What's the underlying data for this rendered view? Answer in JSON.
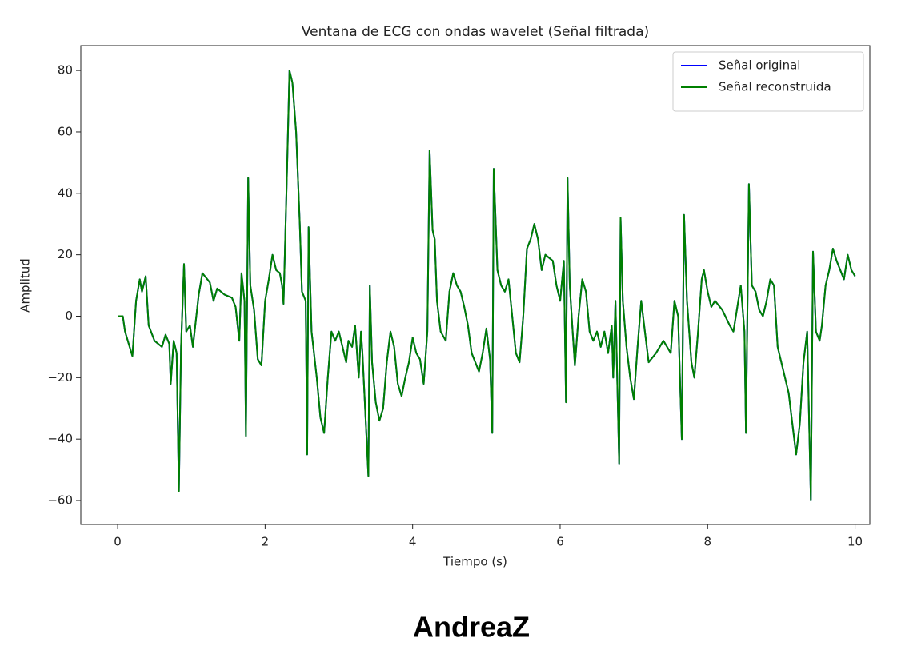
{
  "chart_data": {
    "type": "line",
    "title": "Ventana de ECG con ondas wavelet (Señal filtrada)",
    "xlabel": "Tiempo (s)",
    "ylabel": "Amplitud",
    "xlim": [
      -0.5,
      10.2
    ],
    "ylim": [
      -67.8,
      88.1
    ],
    "xticks": [
      0,
      2,
      4,
      6,
      8,
      10
    ],
    "yticks": [
      {
        "value": -60,
        "label": "−60"
      },
      {
        "value": -40,
        "label": "−40"
      },
      {
        "value": -20,
        "label": "−20"
      },
      0,
      20,
      40,
      60,
      80
    ],
    "legend": "upper right",
    "x": [
      0,
      0.07,
      0.1,
      0.2,
      0.25,
      0.3,
      0.33,
      0.38,
      0.42,
      0.5,
      0.6,
      0.65,
      0.7,
      0.72,
      0.76,
      0.8,
      0.83,
      0.86,
      0.9,
      0.93,
      0.98,
      1.02,
      1.1,
      1.15,
      1.25,
      1.3,
      1.35,
      1.45,
      1.55,
      1.6,
      1.65,
      1.68,
      1.72,
      1.74,
      1.77,
      1.8,
      1.85,
      1.9,
      1.95,
      2.0,
      2.05,
      2.1,
      2.15,
      2.2,
      2.23,
      2.25,
      2.3,
      2.33,
      2.37,
      2.42,
      2.47,
      2.5,
      2.55,
      2.57,
      2.59,
      2.63,
      2.7,
      2.75,
      2.8,
      2.85,
      2.9,
      2.95,
      3.0,
      3.05,
      3.1,
      3.13,
      3.18,
      3.22,
      3.27,
      3.3,
      3.32,
      3.4,
      3.42,
      3.45,
      3.5,
      3.55,
      3.6,
      3.65,
      3.7,
      3.75,
      3.8,
      3.85,
      3.9,
      3.95,
      4.0,
      4.05,
      4.1,
      4.15,
      4.2,
      4.23,
      4.27,
      4.3,
      4.33,
      4.38,
      4.45,
      4.5,
      4.55,
      4.6,
      4.65,
      4.7,
      4.75,
      4.8,
      4.85,
      4.9,
      4.95,
      5.0,
      5.05,
      5.08,
      5.1,
      5.15,
      5.2,
      5.25,
      5.3,
      5.35,
      5.4,
      5.45,
      5.5,
      5.55,
      5.6,
      5.65,
      5.7,
      5.75,
      5.8,
      5.9,
      5.95,
      6.0,
      6.05,
      6.08,
      6.1,
      6.13,
      6.17,
      6.2,
      6.25,
      6.3,
      6.35,
      6.4,
      6.45,
      6.5,
      6.55,
      6.6,
      6.65,
      6.7,
      6.72,
      6.75,
      6.8,
      6.82,
      6.85,
      6.9,
      6.95,
      7.0,
      7.05,
      7.1,
      7.15,
      7.2,
      7.3,
      7.4,
      7.5,
      7.55,
      7.6,
      7.65,
      7.68,
      7.72,
      7.78,
      7.82,
      7.87,
      7.92,
      7.95,
      8.0,
      8.05,
      8.1,
      8.2,
      8.3,
      8.35,
      8.45,
      8.5,
      8.52,
      8.56,
      8.6,
      8.65,
      8.7,
      8.75,
      8.8,
      8.85,
      8.9,
      8.95,
      9.0,
      9.05,
      9.1,
      9.15,
      9.2,
      9.25,
      9.3,
      9.35,
      9.4,
      9.43,
      9.47,
      9.52,
      9.55,
      9.6,
      9.65,
      9.7,
      9.75,
      9.8,
      9.85,
      9.9,
      9.95,
      10.0
    ],
    "series": [
      {
        "name": "Señal original",
        "color": "#0000ff",
        "values": [
          0,
          0,
          -5,
          -13,
          5,
          12,
          8,
          13,
          -3,
          -8,
          -10,
          -6,
          -9,
          -22,
          -8,
          -12,
          -57,
          -10,
          17,
          -5,
          -3,
          -10,
          7,
          14,
          11,
          5,
          9,
          7,
          6,
          3,
          -8,
          14,
          5,
          -39,
          45,
          10,
          2,
          -14,
          -16,
          5,
          12,
          20,
          15,
          14,
          10,
          4,
          50,
          80,
          76,
          60,
          30,
          8,
          5,
          -45,
          29,
          -5,
          -20,
          -33,
          -38,
          -20,
          -5,
          -8,
          -5,
          -10,
          -15,
          -8,
          -10,
          -3,
          -20,
          -5,
          -12,
          -52,
          10,
          -15,
          -28,
          -34,
          -30,
          -15,
          -5,
          -10,
          -22,
          -26,
          -20,
          -15,
          -7,
          -12,
          -14,
          -22,
          -5,
          54,
          28,
          25,
          5,
          -5,
          -8,
          8,
          14,
          10,
          8,
          3,
          -3,
          -12,
          -15,
          -18,
          -12,
          -4,
          -14,
          -38,
          48,
          15,
          10,
          8,
          12,
          0,
          -12,
          -15,
          0,
          22,
          25,
          30,
          25,
          15,
          20,
          18,
          10,
          5,
          18,
          -28,
          45,
          10,
          -5,
          -16,
          0,
          12,
          8,
          -5,
          -8,
          -5,
          -10,
          -5,
          -12,
          -3,
          -20,
          5,
          -48,
          32,
          5,
          -10,
          -20,
          -27,
          -10,
          5,
          -5,
          -15,
          -12,
          -8,
          -12,
          5,
          0,
          -40,
          33,
          5,
          -15,
          -20,
          -5,
          12,
          15,
          8,
          3,
          5,
          2,
          -3,
          -5,
          10,
          -5,
          -38,
          43,
          10,
          8,
          2,
          0,
          5,
          12,
          10,
          -10,
          -15,
          -20,
          -25,
          -35,
          -45,
          -35,
          -15,
          -5,
          -60,
          21,
          -5,
          -8,
          -3,
          10,
          15,
          22,
          18,
          15,
          12,
          20,
          15,
          13
        ]
      },
      {
        "name": "Señal reconstruida",
        "color": "#008000",
        "values": [
          0,
          0,
          -5,
          -13,
          5,
          12,
          8,
          13,
          -3,
          -8,
          -10,
          -6,
          -9,
          -22,
          -8,
          -12,
          -57,
          -10,
          17,
          -5,
          -3,
          -10,
          7,
          14,
          11,
          5,
          9,
          7,
          6,
          3,
          -8,
          14,
          5,
          -39,
          45,
          10,
          2,
          -14,
          -16,
          5,
          12,
          20,
          15,
          14,
          10,
          4,
          50,
          80,
          76,
          60,
          30,
          8,
          5,
          -45,
          29,
          -5,
          -20,
          -33,
          -38,
          -20,
          -5,
          -8,
          -5,
          -10,
          -15,
          -8,
          -10,
          -3,
          -20,
          -5,
          -12,
          -52,
          10,
          -15,
          -28,
          -34,
          -30,
          -15,
          -5,
          -10,
          -22,
          -26,
          -20,
          -15,
          -7,
          -12,
          -14,
          -22,
          -5,
          54,
          28,
          25,
          5,
          -5,
          -8,
          8,
          14,
          10,
          8,
          3,
          -3,
          -12,
          -15,
          -18,
          -12,
          -4,
          -14,
          -38,
          48,
          15,
          10,
          8,
          12,
          0,
          -12,
          -15,
          0,
          22,
          25,
          30,
          25,
          15,
          20,
          18,
          10,
          5,
          18,
          -28,
          45,
          10,
          -5,
          -16,
          0,
          12,
          8,
          -5,
          -8,
          -5,
          -10,
          -5,
          -12,
          -3,
          -20,
          5,
          -48,
          32,
          5,
          -10,
          -20,
          -27,
          -10,
          5,
          -5,
          -15,
          -12,
          -8,
          -12,
          5,
          0,
          -40,
          33,
          5,
          -15,
          -20,
          -5,
          12,
          15,
          8,
          3,
          5,
          2,
          -3,
          -5,
          10,
          -5,
          -38,
          43,
          10,
          8,
          2,
          0,
          5,
          12,
          10,
          -10,
          -15,
          -20,
          -25,
          -35,
          -45,
          -35,
          -15,
          -5,
          -60,
          21,
          -5,
          -8,
          -3,
          10,
          15,
          22,
          18,
          15,
          12,
          20,
          15,
          13
        ]
      }
    ]
  },
  "caption": "AndreaZ"
}
